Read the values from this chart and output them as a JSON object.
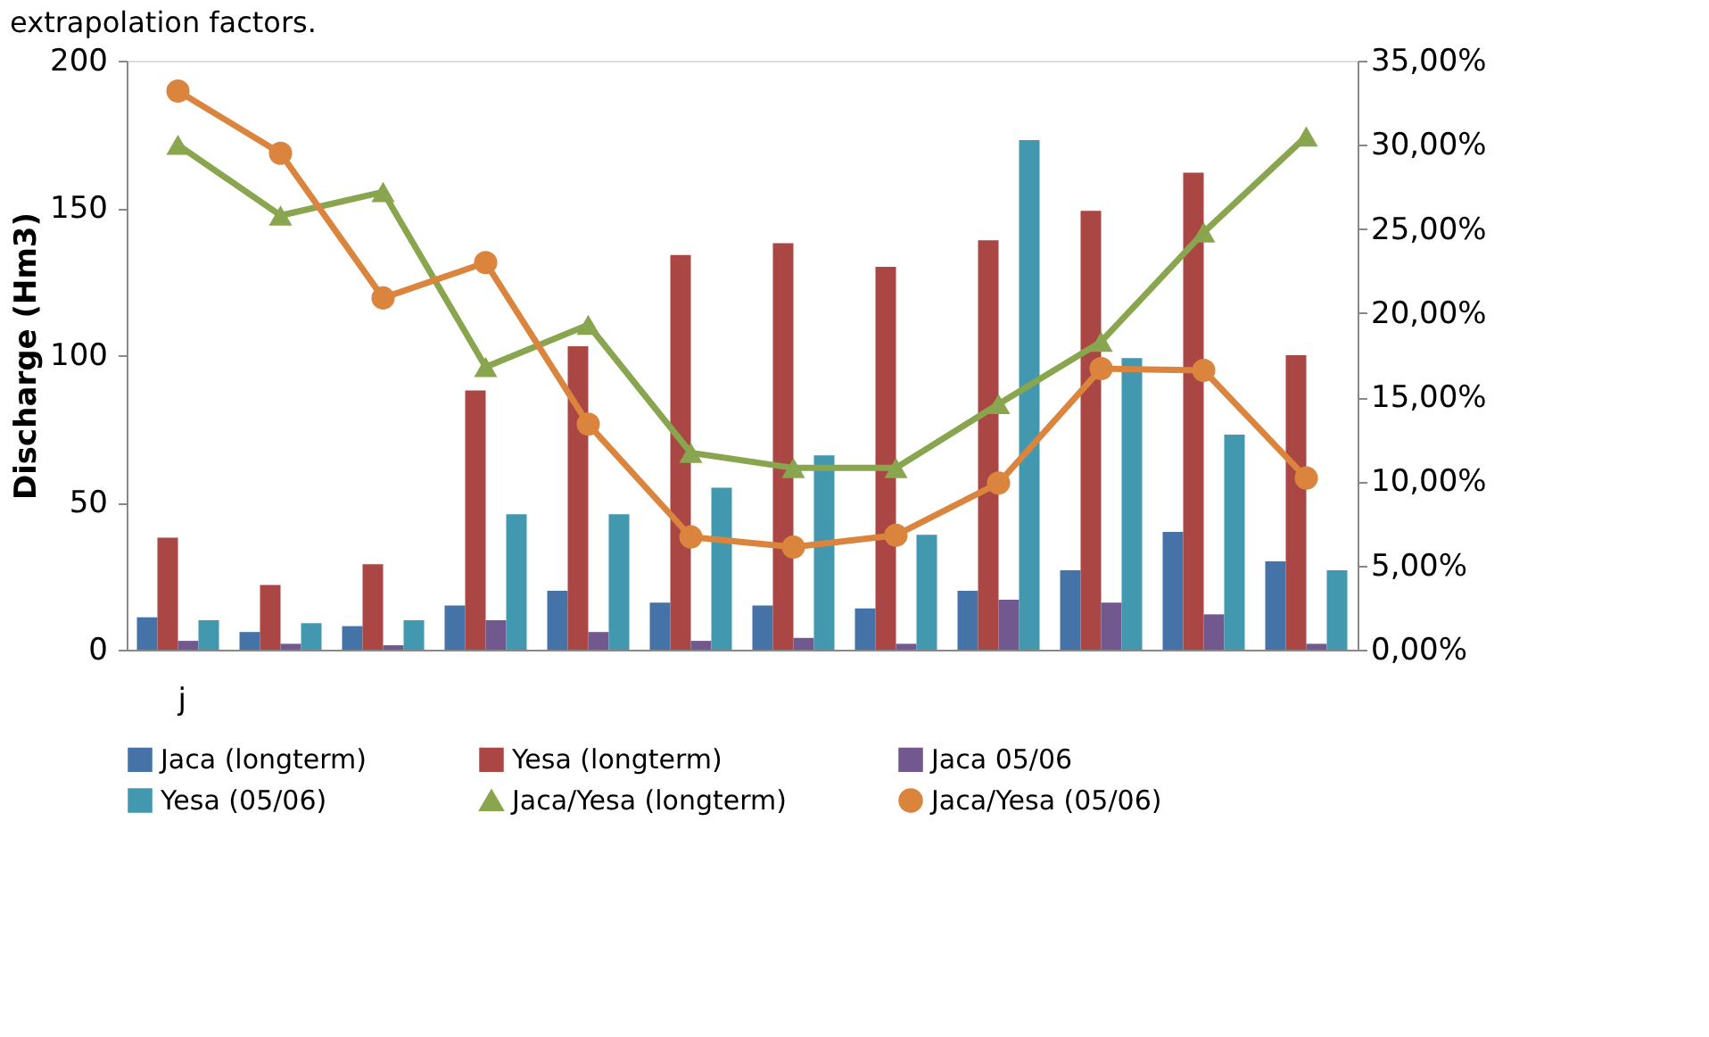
{
  "chart_data": {
    "type": "bar",
    "categories": [
      "j",
      null,
      null,
      null,
      null,
      null,
      null,
      null,
      null,
      null,
      null,
      null
    ],
    "ylabel": "Discharge (Hm3)",
    "ylim": [
      0,
      200
    ],
    "yticks": [
      0,
      50,
      100,
      150,
      200
    ],
    "y2lim": [
      0,
      35
    ],
    "y2ticks": [
      {
        "value": 0,
        "label": "0,00%"
      },
      {
        "value": 5,
        "label": "5,00%"
      },
      {
        "value": 10,
        "label": "10,00%"
      },
      {
        "value": 15,
        "label": "15,00%"
      },
      {
        "value": 20,
        "label": "20,00%"
      },
      {
        "value": 25,
        "label": "25,00%"
      },
      {
        "value": 30,
        "label": "30,00%"
      },
      {
        "value": 35,
        "label": "35,00%"
      }
    ],
    "annotations": [
      "extrapolation factors."
    ],
    "legend": "bottom",
    "grid": false,
    "series": [
      {
        "name": "Jaca (longterm)",
        "color": "#4572a7",
        "values": [
          11,
          6,
          8,
          15,
          20,
          16,
          15,
          14,
          20,
          27,
          40,
          30
        ]
      },
      {
        "name": "Yesa (longterm)",
        "color": "#aa4643",
        "values": [
          38,
          22,
          29,
          88,
          103,
          134,
          138,
          130,
          139,
          149,
          162,
          100
        ]
      },
      {
        "name": "Jaca 05/06",
        "color": "#71588f",
        "values": [
          3,
          2,
          1.5,
          10,
          6,
          3,
          4,
          2,
          17,
          16,
          12,
          2
        ]
      },
      {
        "name": "Yesa (05/06)",
        "color": "#4198af",
        "values": [
          10,
          9,
          10,
          46,
          46,
          55,
          66,
          39,
          173,
          99,
          73,
          27
        ]
      },
      {
        "name": "Jaca/Yesa (longterm)",
        "type": "line",
        "axis": "y2",
        "marker": "triangle",
        "color": "#89a54e",
        "values": [
          30,
          25.8,
          27.2,
          16.8,
          19.3,
          11.7,
          10.8,
          10.8,
          14.6,
          18.3,
          24.8,
          30.5
        ]
      },
      {
        "name": "Jaca/Yesa (05/06)",
        "type": "line",
        "axis": "y2",
        "marker": "circle",
        "color": "#db843d",
        "values": [
          33.2,
          29.5,
          20.9,
          23,
          13.4,
          6.7,
          6.1,
          6.8,
          9.9,
          16.7,
          16.6,
          10.2
        ]
      }
    ]
  }
}
